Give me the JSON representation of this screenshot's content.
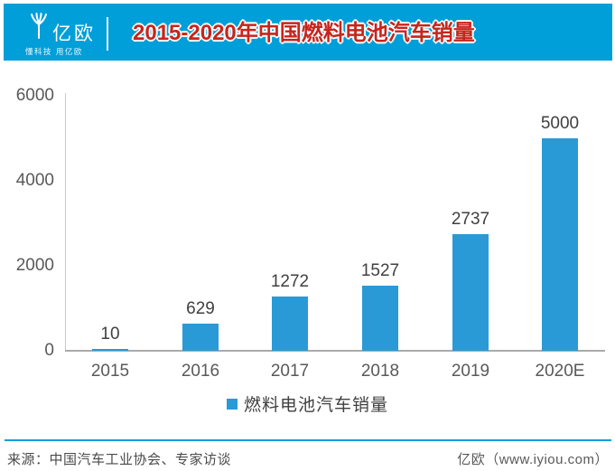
{
  "header": {
    "logo_text": "亿欧",
    "tagline": "懂科技 用亿欧",
    "title": "2015-2020年中国燃料电池汽车销量"
  },
  "chart_data": {
    "type": "bar",
    "title": "2015-2020年中国燃料电池汽车销量",
    "categories": [
      "2015",
      "2016",
      "2017",
      "2018",
      "2019",
      "2020E"
    ],
    "values": [
      10,
      629,
      1272,
      1527,
      2737,
      5000
    ],
    "value_labels": [
      "10",
      "629",
      "1272",
      "1527",
      "2737",
      "5000"
    ],
    "xlabel": "",
    "ylabel": "",
    "ylim": [
      0,
      6000
    ],
    "yticks": [
      0,
      2000,
      4000,
      6000
    ],
    "grid": false,
    "legend": [
      "燃料电池汽车销量"
    ],
    "legend_position": "bottom",
    "bar_color": "#2a9ad6"
  },
  "legend": {
    "label": "燃料电池汽车销量"
  },
  "footer": {
    "source": "来源：中国汽车工业协会、专家访谈",
    "brand": "亿欧（www.iyiou.com）"
  },
  "colors": {
    "header_bg": "#009fd9",
    "title_red": "#c7251d",
    "bar_blue": "#2a9ad6",
    "axis_gray": "#595959"
  }
}
